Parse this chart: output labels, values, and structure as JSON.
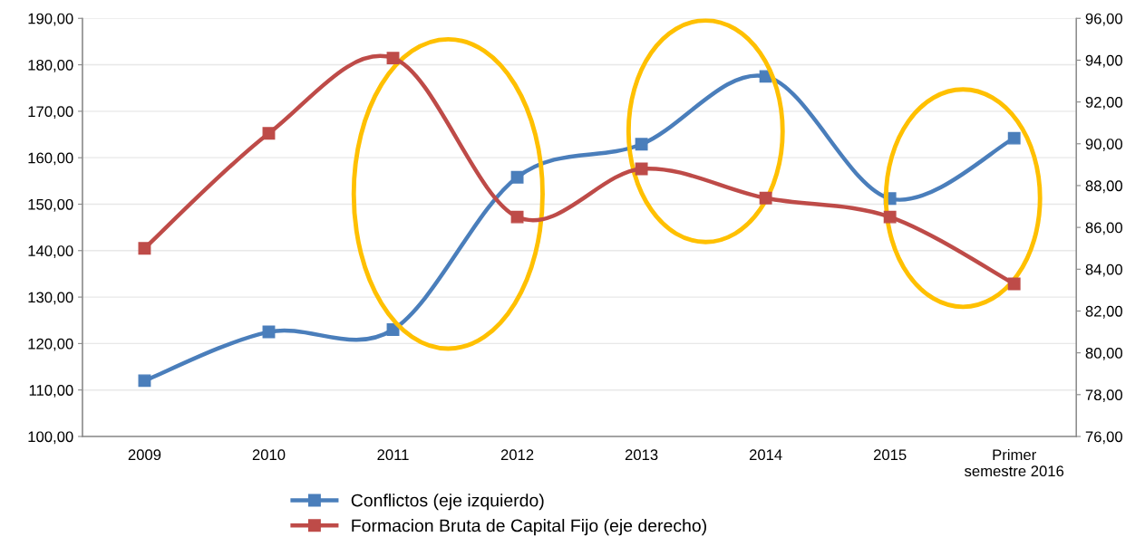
{
  "chart_data": {
    "type": "line",
    "categories": [
      "2009",
      "2010",
      "2011",
      "2012",
      "2013",
      "2014",
      "2015",
      "Primer\nsemestre 2016"
    ],
    "series": [
      {
        "name": "Conflictos (eje izquierdo)",
        "color": "#4a7ebb",
        "values": [
          112.0,
          122.5,
          123.0,
          155.8,
          162.9,
          177.5,
          151.2,
          164.2
        ]
      },
      {
        "name": "Formacion Bruta de Capital Fijo (eje derecho)",
        "color": "#be4b48",
        "axis": "y2",
        "values": [
          85.0,
          90.5,
          94.1,
          86.5,
          88.8,
          87.4,
          86.5,
          83.3
        ]
      }
    ],
    "ylim": [
      100,
      190
    ],
    "yticks": [
      {
        "value": 100,
        "label": "100,00"
      },
      {
        "value": 110,
        "label": "110,00"
      },
      {
        "value": 120,
        "label": "120,00"
      },
      {
        "value": 130,
        "label": "130,00"
      },
      {
        "value": 140,
        "label": "140,00"
      },
      {
        "value": 150,
        "label": "150,00"
      },
      {
        "value": 160,
        "label": "160,00"
      },
      {
        "value": 170,
        "label": "170,00"
      },
      {
        "value": 180,
        "label": "180,00"
      },
      {
        "value": 190,
        "label": "190,00"
      }
    ],
    "y2lim": [
      76,
      96
    ],
    "y2ticks": [
      {
        "value": 76,
        "label": "76,00"
      },
      {
        "value": 78,
        "label": "78,00"
      },
      {
        "value": 80,
        "label": "80,00"
      },
      {
        "value": 82,
        "label": "82,00"
      },
      {
        "value": 84,
        "label": "84,00"
      },
      {
        "value": 86,
        "label": "86,00"
      },
      {
        "value": 88,
        "label": "88,00"
      },
      {
        "value": 90,
        "label": "90,00"
      },
      {
        "value": 92,
        "label": "92,00"
      },
      {
        "value": 94,
        "label": "94,00"
      },
      {
        "value": 96,
        "label": "96,00"
      }
    ],
    "grid": "y",
    "legend": "bottom",
    "marker": "square",
    "line_style": "solid"
  }
}
